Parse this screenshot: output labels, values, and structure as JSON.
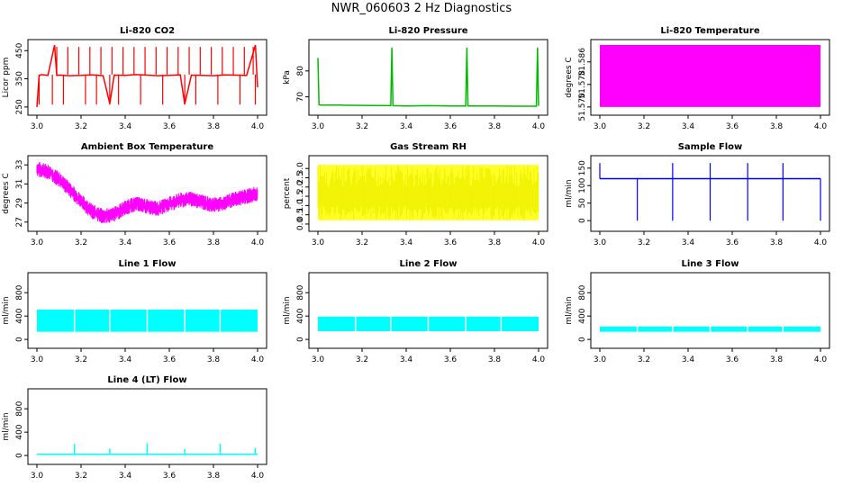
{
  "title": "NWR_060603  2 Hz Diagnostics",
  "colors": {
    "red": "#ff0000",
    "green": "#00bb00",
    "magenta": "#ff00ff",
    "yellow": "#ffff00",
    "blue": "#0000ff",
    "cyan": "#00ffff"
  },
  "chart_data": [
    {
      "type": "line",
      "title": "Li-820 CO2",
      "ylabel": "Licor ppm",
      "xlim": [
        3.0,
        4.0
      ],
      "ylim": [
        240,
        470
      ],
      "xticks": [
        "3.0",
        "3.2",
        "3.4",
        "3.6",
        "3.8",
        "4.0"
      ],
      "yticks": [
        "250",
        "350",
        "450"
      ],
      "color": "red",
      "series": [
        {
          "x": [
            3.0,
            3.01,
            3.02,
            3.05,
            3.08,
            3.09,
            3.1,
            3.15,
            3.2,
            3.25,
            3.3,
            3.33,
            3.35,
            3.4,
            3.45,
            3.5,
            3.55,
            3.6,
            3.65,
            3.67,
            3.7,
            3.75,
            3.8,
            3.85,
            3.9,
            3.95,
            3.99,
            4.0
          ],
          "y": [
            250,
            360,
            365,
            362,
            470,
            362,
            363,
            361,
            362,
            364,
            361,
            262,
            363,
            362,
            365,
            363,
            361,
            362,
            364,
            260,
            363,
            362,
            361,
            364,
            363,
            362,
            470,
            320
          ]
        }
      ],
      "spikes_up_x": [
        3.09,
        3.14,
        3.19,
        3.24,
        3.29,
        3.34,
        3.39,
        3.44,
        3.49,
        3.54,
        3.59,
        3.64,
        3.69,
        3.74,
        3.79,
        3.84,
        3.89,
        3.94,
        3.98
      ],
      "spikes_down_x": [
        3.01,
        3.07,
        3.12,
        3.22,
        3.27,
        3.33,
        3.37,
        3.47,
        3.57,
        3.67,
        3.72,
        3.82,
        3.92,
        3.99
      ]
    },
    {
      "type": "line",
      "title": "Li-820 Pressure",
      "ylabel": "kPa",
      "xlim": [
        3.0,
        4.0
      ],
      "ylim": [
        65,
        90
      ],
      "xticks": [
        "3.0",
        "3.2",
        "3.4",
        "3.6",
        "3.8",
        "4.0"
      ],
      "yticks": [
        "70",
        "80"
      ],
      "color": "green",
      "series": [
        {
          "x": [
            3.0,
            3.005,
            3.01,
            3.1,
            3.2,
            3.33,
            3.335,
            3.34,
            3.4,
            3.5,
            3.6,
            3.67,
            3.675,
            3.68,
            3.8,
            3.9,
            3.99,
            3.995,
            4.0
          ],
          "y": [
            85,
            67,
            66.8,
            66.8,
            66.7,
            66.6,
            89,
            66.6,
            66.5,
            66.6,
            66.5,
            66.5,
            89,
            66.5,
            66.5,
            66.4,
            66.4,
            89,
            66.5
          ]
        }
      ]
    },
    {
      "type": "area",
      "title": "Li-820 Temperature",
      "ylabel": "degrees C",
      "xlim": [
        3.0,
        4.0
      ],
      "ylim": [
        51.569,
        51.592
      ],
      "xticks": [
        "3.0",
        "3.2",
        "3.4",
        "3.6",
        "3.8",
        "4.0"
      ],
      "yticks": [
        "51.570",
        "51.578",
        "51.586"
      ],
      "color": "magenta",
      "series": [
        {
          "x": [
            3.0,
            4.0
          ],
          "ymin": [
            51.57,
            51.57
          ],
          "ymax": [
            51.592,
            51.592
          ]
        }
      ]
    },
    {
      "type": "line",
      "title": "Ambient Box Temperature",
      "ylabel": "degrees C",
      "xlim": [
        3.0,
        4.0
      ],
      "ylim": [
        26.6,
        33.4
      ],
      "xticks": [
        "3.0",
        "3.2",
        "3.4",
        "3.6",
        "3.8",
        "4.0"
      ],
      "yticks": [
        "27",
        "29",
        "31",
        "33"
      ],
      "color": "magenta",
      "series": [
        {
          "x": [
            3.0,
            3.05,
            3.1,
            3.15,
            3.2,
            3.25,
            3.3,
            3.35,
            3.4,
            3.45,
            3.5,
            3.55,
            3.6,
            3.65,
            3.7,
            3.75,
            3.8,
            3.85,
            3.9,
            3.95,
            4.0
          ],
          "y": [
            32.6,
            32.3,
            31.5,
            30.4,
            29.2,
            28.1,
            27.6,
            27.8,
            28.5,
            28.9,
            28.6,
            28.4,
            28.9,
            29.3,
            29.4,
            29.1,
            28.8,
            29.0,
            29.4,
            29.7,
            30.0
          ],
          "band": 0.8
        }
      ]
    },
    {
      "type": "area",
      "title": "Gas Stream RH",
      "ylabel": "percent",
      "xlim": [
        3.0,
        4.0
      ],
      "ylim": [
        -0.1,
        3.4
      ],
      "xticks": [
        "3.0",
        "3.2",
        "3.4",
        "3.6",
        "3.8",
        "4.0"
      ],
      "yticks": [
        "0.0",
        "0.5",
        "1.0",
        "1.5",
        "2.0",
        "2.5",
        "3.0"
      ],
      "color": "yellow",
      "series": [
        {
          "x": [
            3.0,
            4.0
          ],
          "ymin": [
            0.2,
            0.2
          ],
          "ymax": [
            3.2,
            3.2
          ]
        }
      ]
    },
    {
      "type": "line",
      "title": "Sample Flow",
      "ylabel": "ml/min",
      "xlim": [
        3.0,
        4.0
      ],
      "ylim": [
        -15,
        170
      ],
      "xticks": [
        "3.0",
        "3.2",
        "3.4",
        "3.6",
        "3.8",
        "4.0"
      ],
      "yticks": [
        "0",
        "50",
        "100",
        "150"
      ],
      "color": "blue",
      "series": [
        {
          "x": [
            3.0,
            4.0
          ],
          "y": [
            120,
            120
          ]
        }
      ],
      "spikes_up_x": [
        3.0,
        3.33,
        3.5,
        3.67,
        3.83
      ],
      "spikes_down_x": [
        3.17,
        3.33,
        3.5,
        3.67,
        3.83,
        4.0
      ]
    },
    {
      "type": "area",
      "title": "Line 1 Flow",
      "ylabel": "ml/min",
      "xlim": [
        3.0,
        4.0
      ],
      "ylim": [
        -60,
        1050
      ],
      "xticks": [
        "3.0",
        "3.2",
        "3.4",
        "3.6",
        "3.8",
        "4.0"
      ],
      "yticks": [
        "0",
        "400",
        "800"
      ],
      "color": "cyan",
      "series": [
        {
          "x": [
            3.0,
            4.0
          ],
          "ymin": [
            130,
            130
          ],
          "ymax": [
            510,
            510
          ]
        }
      ],
      "gaps_x": [
        3.17,
        3.33,
        3.5,
        3.67,
        3.83
      ]
    },
    {
      "type": "area",
      "title": "Line 2 Flow",
      "ylabel": "ml/min",
      "xlim": [
        3.0,
        4.0
      ],
      "ylim": [
        -60,
        1050
      ],
      "xticks": [
        "3.0",
        "3.2",
        "3.4",
        "3.6",
        "3.8",
        "4.0"
      ],
      "yticks": [
        "0",
        "400",
        "800"
      ],
      "color": "cyan",
      "series": [
        {
          "x": [
            3.0,
            4.0
          ],
          "ymin": [
            140,
            140
          ],
          "ymax": [
            390,
            390
          ]
        }
      ],
      "gaps_x": [
        3.17,
        3.33,
        3.5,
        3.67,
        3.83
      ]
    },
    {
      "type": "area",
      "title": "Line 3 Flow",
      "ylabel": "ml/min",
      "xlim": [
        3.0,
        4.0
      ],
      "ylim": [
        -60,
        1050
      ],
      "xticks": [
        "3.0",
        "3.2",
        "3.4",
        "3.6",
        "3.8",
        "4.0"
      ],
      "yticks": [
        "0",
        "400",
        "800"
      ],
      "color": "cyan",
      "series": [
        {
          "x": [
            3.0,
            4.0
          ],
          "ymin": [
            130,
            130
          ],
          "ymax": [
            220,
            220
          ]
        }
      ],
      "gaps_x": [
        3.17,
        3.33,
        3.5,
        3.67,
        3.83
      ]
    },
    {
      "type": "line",
      "title": "Line 4 (LT) Flow",
      "ylabel": "ml/min",
      "xlim": [
        3.0,
        4.0
      ],
      "ylim": [
        -60,
        1050
      ],
      "xticks": [
        "3.0",
        "3.2",
        "3.4",
        "3.6",
        "3.8",
        "4.0"
      ],
      "yticks": [
        "0",
        "400",
        "800"
      ],
      "color": "cyan",
      "series": [
        {
          "x": [
            3.0,
            4.0
          ],
          "y": [
            20,
            20
          ]
        }
      ],
      "spikes": [
        {
          "x": 3.17,
          "y": 200
        },
        {
          "x": 3.33,
          "y": 120
        },
        {
          "x": 3.5,
          "y": 210
        },
        {
          "x": 3.67,
          "y": 110
        },
        {
          "x": 3.83,
          "y": 200
        },
        {
          "x": 3.99,
          "y": 130
        }
      ]
    }
  ]
}
